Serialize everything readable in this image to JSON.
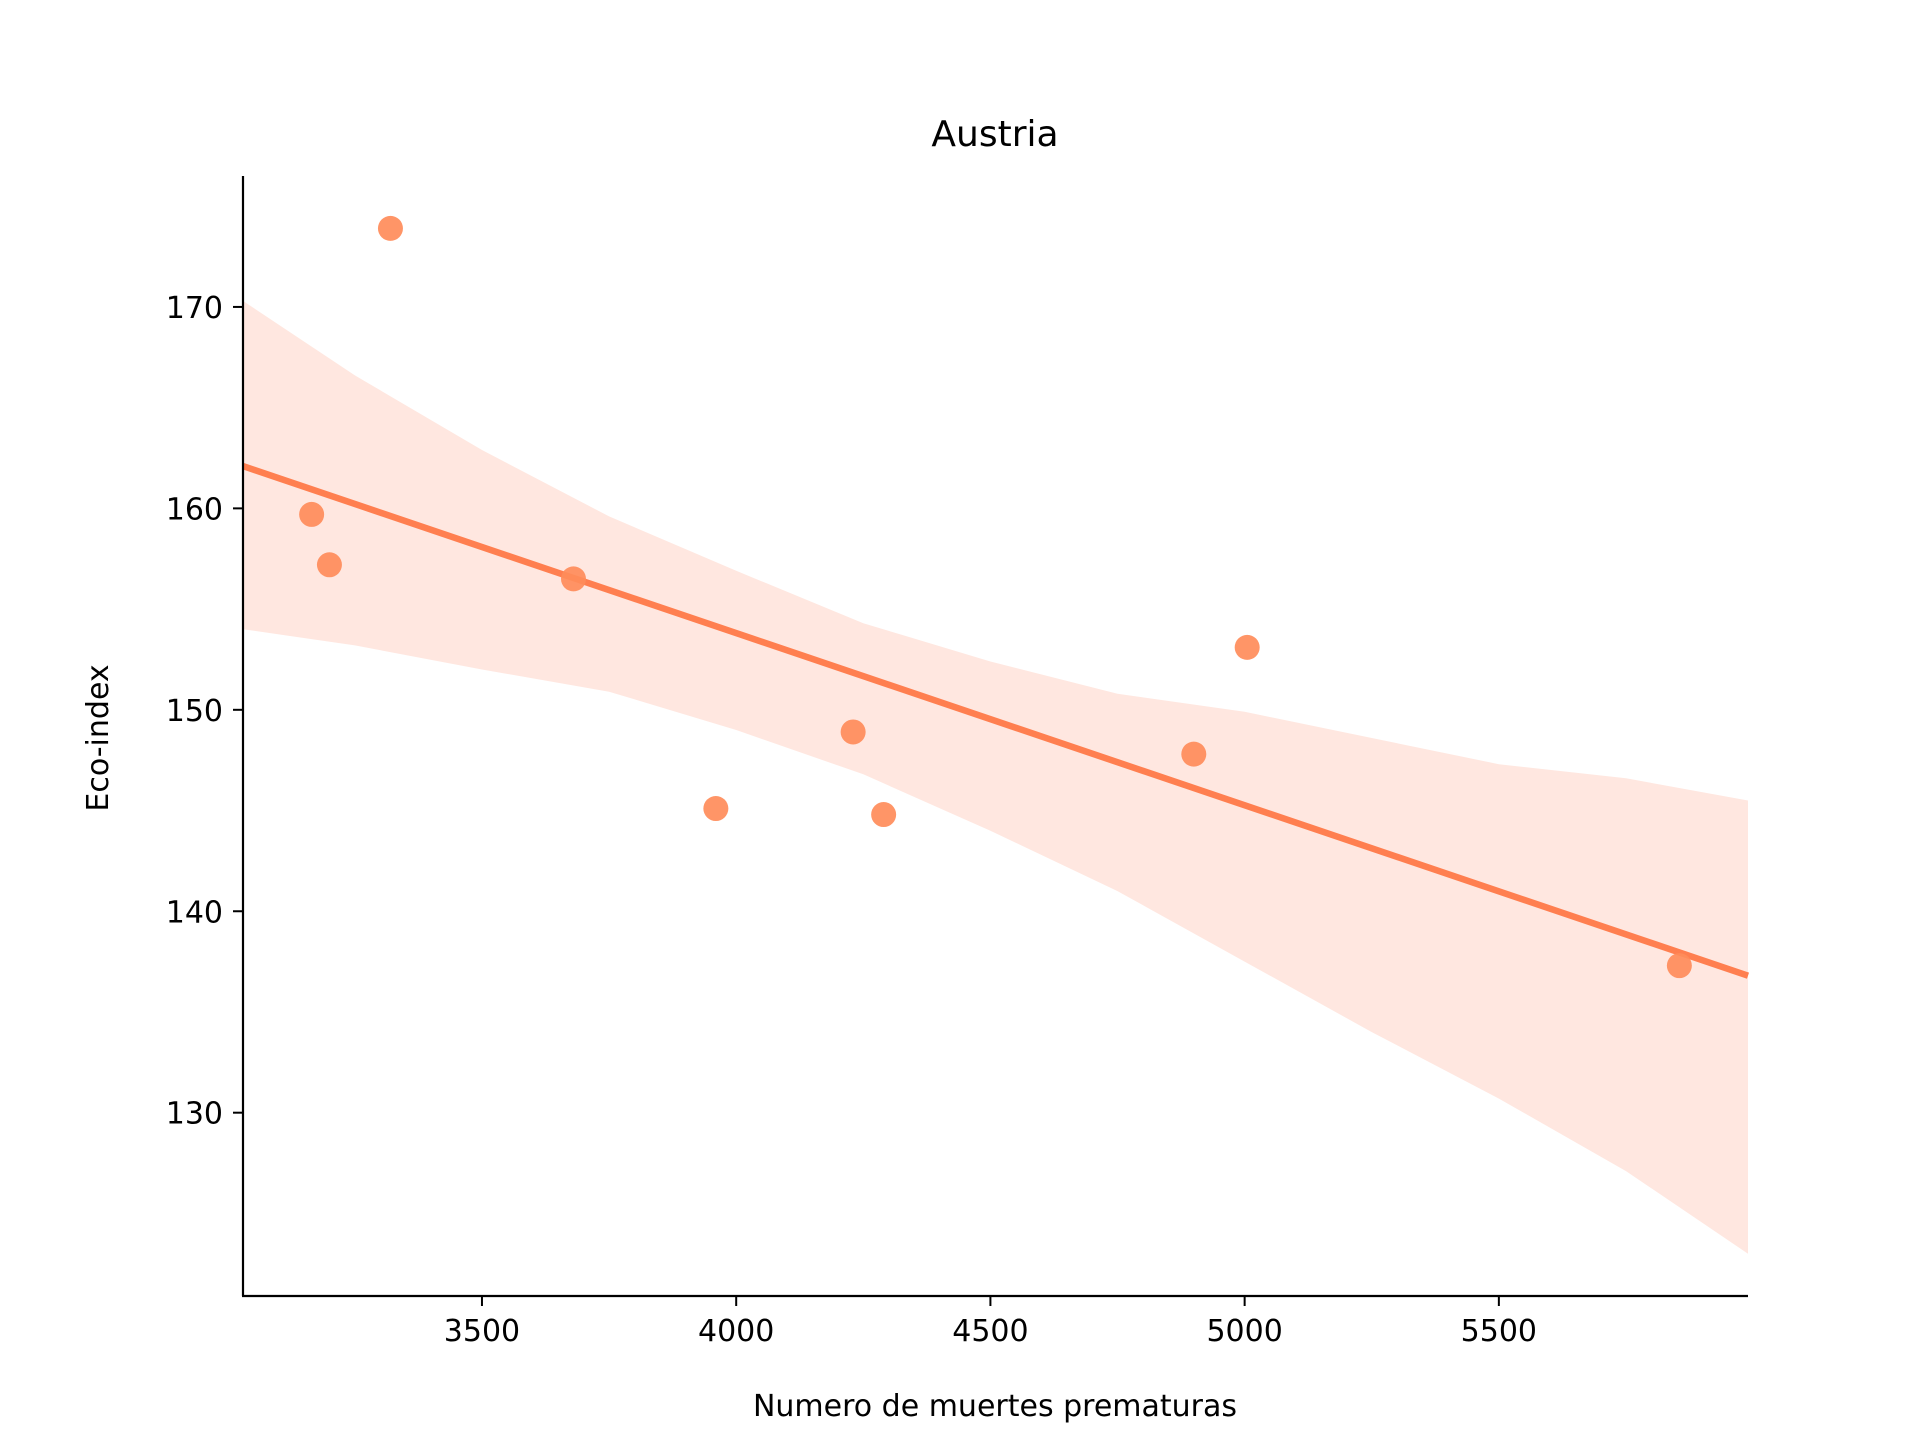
{
  "chart_data": {
    "type": "scatter",
    "title": "Austria",
    "xlabel": "Numero de muertes prematuras",
    "ylabel": "Eco-index",
    "xlim": [
      3030,
      5990
    ],
    "ylim": [
      120.9,
      176.5
    ],
    "x_ticks": [
      3500,
      4000,
      4500,
      5000,
      5500
    ],
    "y_ticks": [
      130,
      140,
      150,
      160,
      170
    ],
    "x_tick_labels": [
      "3500",
      "4000",
      "4500",
      "5000",
      "5500"
    ],
    "y_tick_labels": [
      "130",
      "140",
      "150",
      "160",
      "170"
    ],
    "grid": false,
    "legend": "none",
    "points": [
      {
        "x": 3165,
        "y": 159.7
      },
      {
        "x": 3200,
        "y": 157.2
      },
      {
        "x": 3320,
        "y": 173.9
      },
      {
        "x": 3680,
        "y": 156.5
      },
      {
        "x": 3960,
        "y": 145.1
      },
      {
        "x": 4230,
        "y": 148.9
      },
      {
        "x": 4290,
        "y": 144.8
      },
      {
        "x": 4900,
        "y": 147.8
      },
      {
        "x": 5005,
        "y": 153.1
      },
      {
        "x": 5855,
        "y": 137.3
      }
    ],
    "regression_line": [
      {
        "x": 3030,
        "y": 162.1
      },
      {
        "x": 5990,
        "y": 136.8
      }
    ],
    "confidence_band": {
      "upper": [
        {
          "x": 3030,
          "y": 170.3
        },
        {
          "x": 3250,
          "y": 166.6
        },
        {
          "x": 3500,
          "y": 162.9
        },
        {
          "x": 3750,
          "y": 159.6
        },
        {
          "x": 4000,
          "y": 156.9
        },
        {
          "x": 4250,
          "y": 154.3
        },
        {
          "x": 4500,
          "y": 152.4
        },
        {
          "x": 4750,
          "y": 150.8
        },
        {
          "x": 5000,
          "y": 149.9
        },
        {
          "x": 5250,
          "y": 148.6
        },
        {
          "x": 5500,
          "y": 147.3
        },
        {
          "x": 5750,
          "y": 146.6
        },
        {
          "x": 5990,
          "y": 145.5
        }
      ],
      "lower": [
        {
          "x": 3030,
          "y": 154.0
        },
        {
          "x": 3250,
          "y": 153.2
        },
        {
          "x": 3500,
          "y": 152.0
        },
        {
          "x": 3750,
          "y": 150.9
        },
        {
          "x": 4000,
          "y": 149.0
        },
        {
          "x": 4250,
          "y": 146.8
        },
        {
          "x": 4500,
          "y": 144.0
        },
        {
          "x": 4750,
          "y": 141.0
        },
        {
          "x": 5000,
          "y": 137.5
        },
        {
          "x": 5250,
          "y": 134.0
        },
        {
          "x": 5500,
          "y": 130.7
        },
        {
          "x": 5750,
          "y": 127.1
        },
        {
          "x": 5990,
          "y": 123.0
        }
      ]
    },
    "colors": {
      "points": "#FF8C5A",
      "line": "#FF7F50",
      "band": "#FFE7E0",
      "axis": "#000000"
    }
  }
}
